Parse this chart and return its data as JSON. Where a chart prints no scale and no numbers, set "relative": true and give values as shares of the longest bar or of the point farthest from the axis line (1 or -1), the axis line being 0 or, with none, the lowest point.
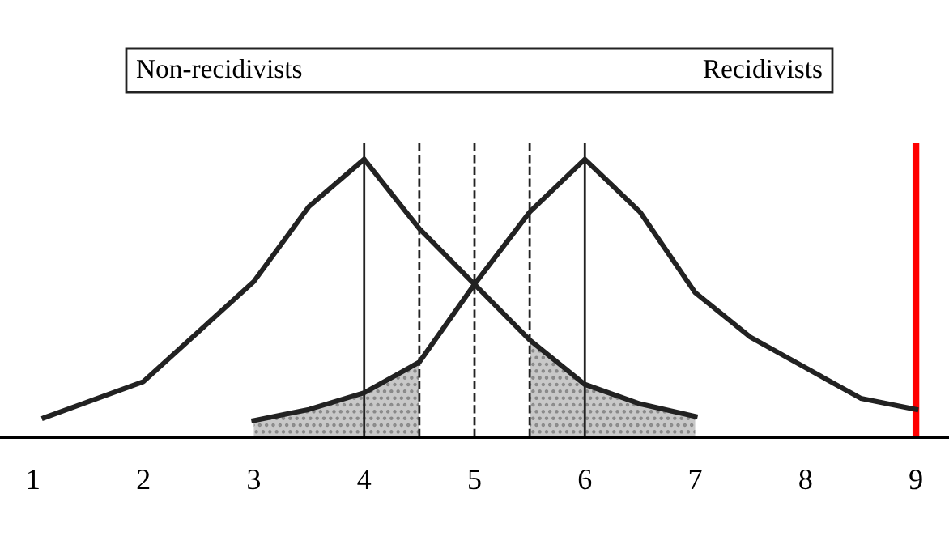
{
  "chart_data": {
    "type": "line",
    "relative": true,
    "annotations": [
      "Non-recidivists",
      "Recidivists"
    ],
    "xlim": [
      0.7,
      9.3
    ],
    "xticks": [
      1,
      2,
      3,
      4,
      5,
      6,
      7,
      8,
      9
    ],
    "grid": false,
    "legend": false,
    "marker": "none",
    "line_style": "solid",
    "series": [
      {
        "color": "#222222",
        "x": [
          1.1,
          2,
          3,
          3.5,
          4,
          4.5,
          5,
          5.5,
          6,
          6.5,
          7
        ],
        "values": [
          0.07,
          0.2,
          0.56,
          0.83,
          1.0,
          0.75,
          0.55,
          0.35,
          0.19,
          0.12,
          0.075
        ]
      },
      {
        "color": "#222222",
        "x": [
          3,
          3.5,
          4,
          4.5,
          5,
          5.5,
          6,
          6.5,
          7,
          7.5,
          8,
          8.5,
          9
        ],
        "values": [
          0.06,
          0.1,
          0.16,
          0.27,
          0.55,
          0.81,
          1.0,
          0.81,
          0.52,
          0.36,
          0.25,
          0.14,
          0.1
        ]
      },
      {
        "type": "area",
        "color": "#c8c8c8",
        "x": [
          3,
          3.5,
          4,
          4.5
        ],
        "values": [
          0.06,
          0.1,
          0.16,
          0.27
        ]
      },
      {
        "type": "area",
        "color": "#c8c8c8",
        "x": [
          5.5,
          6,
          6.5,
          7
        ],
        "values": [
          0.35,
          0.19,
          0.12,
          0.075
        ]
      }
    ],
    "ref_lines": [
      {
        "axis": "x",
        "value": 4,
        "color": "#222222",
        "line_style": "solid"
      },
      {
        "axis": "x",
        "value": 6,
        "color": "#222222",
        "line_style": "solid"
      },
      {
        "axis": "x",
        "value": 4.5,
        "color": "#222222",
        "line_style": "dashed"
      },
      {
        "axis": "x",
        "value": 5,
        "color": "#222222",
        "line_style": "dashed"
      },
      {
        "axis": "x",
        "value": 5.5,
        "color": "#222222",
        "line_style": "dashed"
      },
      {
        "axis": "x",
        "value": 9,
        "color": "#ff0000",
        "line_style": "solid"
      }
    ]
  }
}
